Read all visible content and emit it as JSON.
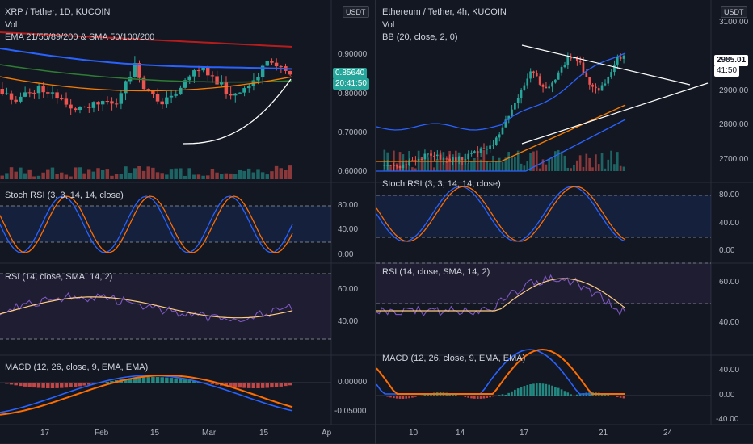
{
  "left": {
    "title": "XRP / Tether, 1D, KUCOIN",
    "vol_label": "Vol",
    "ema_label": "EMA 21/55/89/200 & SMA 50/100/200",
    "unit": "USDT",
    "price_ticks": [
      "0.90000",
      "0.80000",
      "0.70000",
      "0.60000"
    ],
    "price_tag": "0.85640",
    "price_tag_time": "20:41:50",
    "stoch_label": "Stoch RSI (3, 3, 14, 14, close)",
    "stoch_ticks": [
      "80.00",
      "40.00",
      "0.00"
    ],
    "rsi_label": "RSI (14, close, SMA, 14, 2)",
    "rsi_ticks": [
      "60.00",
      "40.00"
    ],
    "macd_label": "MACD (12, 26, close, 9, EMA, EMA)",
    "macd_ticks": [
      "0.00000",
      "-0.05000"
    ],
    "x_ticks": [
      "17",
      "Feb",
      "15",
      "Mar",
      "15",
      "Ap"
    ]
  },
  "right": {
    "title": "Ethereum / Tether, 4h, KUCOIN",
    "vol_label": "Vol",
    "bb_label": "BB (20, close, 2, 0)",
    "unit": "USDT",
    "price_ticks": [
      "3100.00",
      "2900.00",
      "2800.00",
      "2700.00"
    ],
    "price_tag": "2985.01",
    "price_tag_time": "41:50",
    "stoch_label": "Stoch RSI (3, 3, 14, 14, close)",
    "stoch_ticks": [
      "80.00",
      "40.00",
      "0.00"
    ],
    "rsi_label": "RSI (14, close, SMA, 14, 2)",
    "rsi_ticks": [
      "60.00",
      "40.00"
    ],
    "macd_label": "MACD (12, 26, close, 9, EMA, EMA)",
    "macd_ticks": [
      "40.00",
      "0.00",
      "-40.00"
    ],
    "x_ticks": [
      "10",
      "14",
      "17",
      "21",
      "24"
    ]
  },
  "colors": {
    "background": "#131722",
    "up": "#26a69a",
    "down": "#ef5350",
    "ema_red": "#b71c1c",
    "ema_blue": "#2962ff",
    "ema_green": "#2e7d32",
    "ema_orange": "#f57c00",
    "bb_blue": "#2962ff",
    "stoch_k": "#2962ff",
    "stoch_d": "#ff6d00",
    "rsi_line": "#7e57c2",
    "rsi_ma": "#ffcc80",
    "macd_line": "#2962ff",
    "signal_line": "#ff6d00"
  }
}
